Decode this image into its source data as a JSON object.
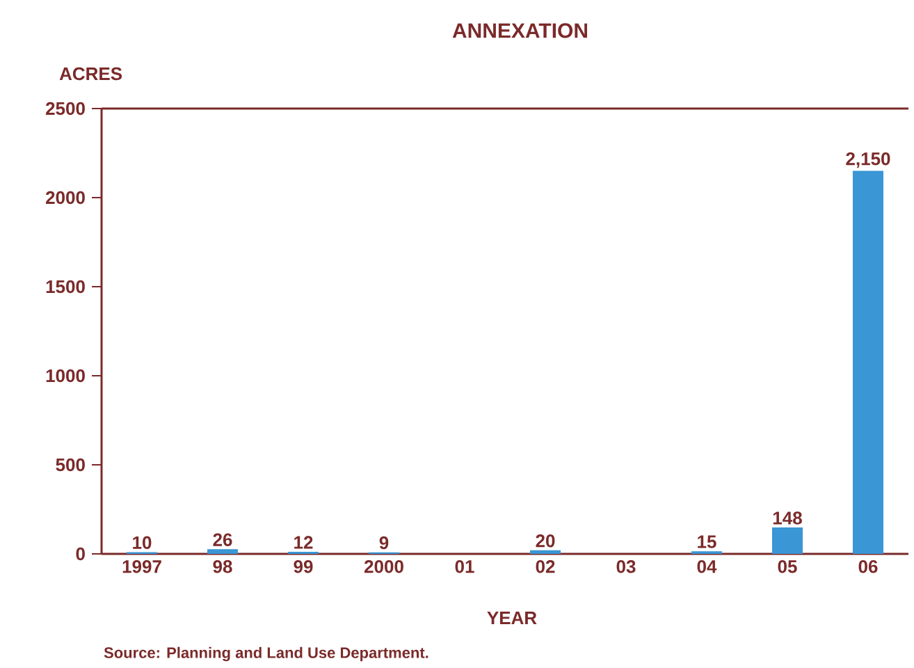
{
  "chart_data": {
    "type": "bar",
    "title": "ANNEXATION",
    "ylabel": "ACRES",
    "xlabel": "YEAR",
    "categories": [
      "1997",
      "98",
      "99",
      "2000",
      "01",
      "02",
      "03",
      "04",
      "05",
      "06"
    ],
    "values": [
      10,
      26,
      12,
      9,
      null,
      20,
      null,
      15,
      148,
      2150
    ],
    "value_labels": [
      "10",
      "26",
      "12",
      "9",
      null,
      "20",
      null,
      "15",
      "148",
      "2,150"
    ],
    "color": "#3a96d4",
    "ylim": [
      0,
      2500
    ],
    "yticks": [
      0,
      500,
      1000,
      1500,
      2000,
      2500
    ],
    "annotations": [
      "Source: Planning and Land Use Department."
    ]
  }
}
